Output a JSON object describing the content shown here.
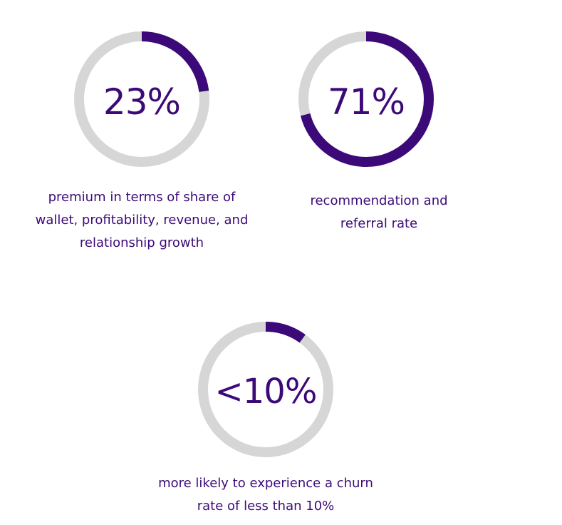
{
  "chart_data": [
    {
      "type": "pie",
      "value": 23,
      "max": 100,
      "value_label": "23%",
      "caption_lines": [
        "premium in terms of share of",
        "wallet, profitability, revenue, and",
        "relationship growth"
      ]
    },
    {
      "type": "pie",
      "value": 71,
      "max": 100,
      "value_label": "71%",
      "caption_lines": [
        "recommendation and",
        "referral rate"
      ]
    },
    {
      "type": "pie",
      "value": 10,
      "max": 100,
      "value_label": "<10%",
      "caption_lines": [
        "more likely to experience a churn",
        "rate of less than 10%"
      ]
    }
  ],
  "colors": {
    "accent": "#3c0a78",
    "track": "#d6d6d6",
    "background": "#ffffff"
  }
}
